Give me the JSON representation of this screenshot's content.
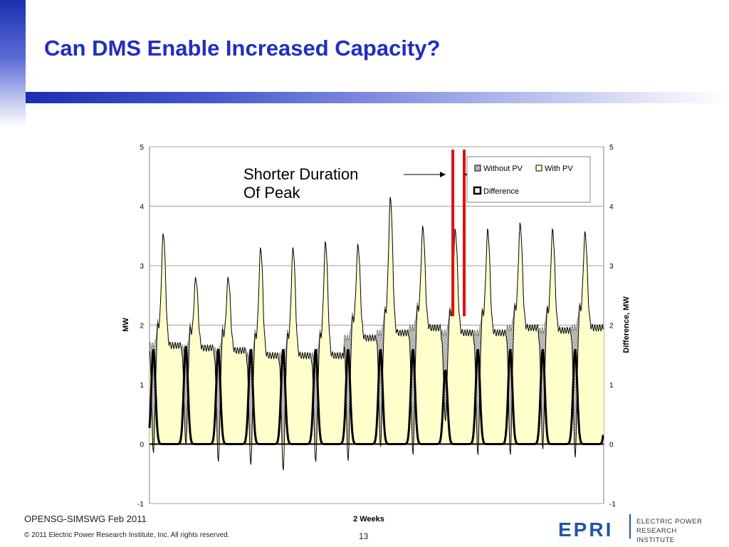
{
  "slide": {
    "title": "Can DMS Enable Increased Capacity?",
    "annotation_line1": "Shorter Duration",
    "annotation_line2": "Of Peak",
    "footer_left": "OPENSG-SIMSWG Feb 2011",
    "footer_copyright": "© 2011 Electric Power Research Institute, Inc. All rights reserved.",
    "page_number": "13",
    "logo_mark": "EPRI",
    "logo_text_line1": "ELECTRIC POWER",
    "logo_text_line2": "RESEARCH INSTITUTE"
  },
  "colors": {
    "title": "#1f2fbf",
    "without_pv_fill": "#bdbdbd",
    "with_pv_fill": "#ffffcc",
    "line": "#000000",
    "highlight": "#e01010",
    "logo": "#1f56a8"
  },
  "chart_data": {
    "type": "area",
    "title": "",
    "xlabel": "2 Weeks",
    "ylabel": "MW",
    "y2label": "Difference, MW",
    "ylim": [
      -1,
      5
    ],
    "y2lim": [
      -1,
      5
    ],
    "yticks": [
      "-1",
      "0",
      "1",
      "2",
      "3",
      "4",
      "5"
    ],
    "legend": {
      "placement": "top-right",
      "entries": [
        "Without PV",
        "With PV",
        "Difference"
      ]
    },
    "days": 14,
    "series": [
      {
        "name": "Without PV",
        "kind": "area",
        "daily_peak": [
          3.55,
          2.8,
          2.8,
          3.3,
          3.3,
          3.4,
          3.35,
          4.15,
          3.65,
          3.6,
          3.6,
          3.7,
          3.6,
          3.55
        ],
        "daily_base": [
          1.95,
          1.9,
          1.85,
          1.75,
          1.75,
          1.75,
          2.1,
          2.2,
          2.3,
          2.2,
          2.2,
          2.3,
          2.25,
          2.3
        ]
      },
      {
        "name": "With PV",
        "kind": "area",
        "daily_peak": [
          3.55,
          2.8,
          2.8,
          3.3,
          3.3,
          3.4,
          3.35,
          4.15,
          3.65,
          3.6,
          3.6,
          3.7,
          3.6,
          3.55
        ],
        "daily_min": [
          -0.25,
          -0.1,
          -0.4,
          -0.45,
          -0.55,
          -0.4,
          -0.4,
          -0.15,
          -0.3,
          0.3,
          -0.3,
          -0.3,
          -0.2,
          -0.35
        ]
      },
      {
        "name": "Difference",
        "kind": "line",
        "daily_peak": [
          1.6,
          1.65,
          1.6,
          1.6,
          1.6,
          1.6,
          1.6,
          1.6,
          1.6,
          1.25,
          1.6,
          1.6,
          1.6,
          1.6
        ]
      }
    ],
    "highlight_lines": [
      {
        "day": 9.35
      },
      {
        "day": 9.7
      }
    ]
  }
}
